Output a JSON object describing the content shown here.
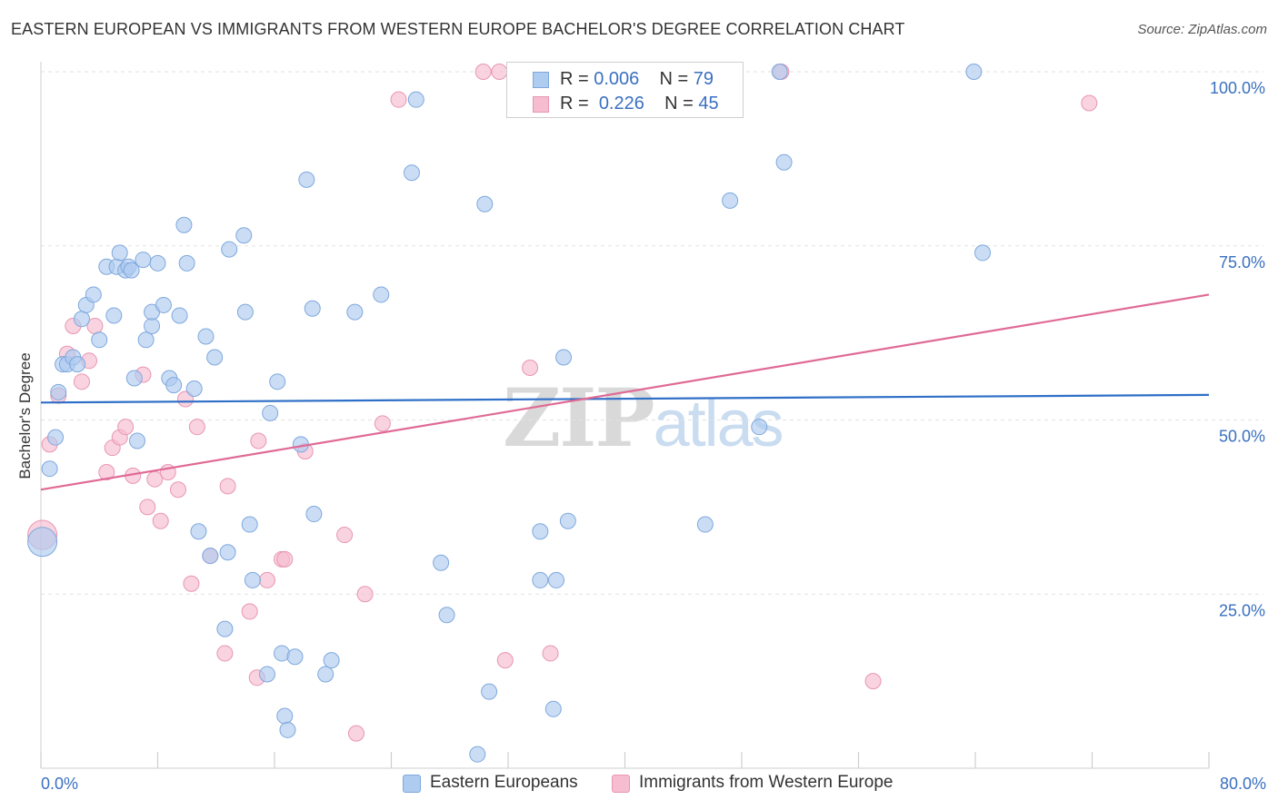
{
  "header": {
    "title": "EASTERN EUROPEAN VS IMMIGRANTS FROM WESTERN EUROPE BACHELOR'S DEGREE CORRELATION CHART",
    "source": "Source: ZipAtlas.com"
  },
  "watermark": {
    "zip": "ZIP",
    "atlas": "atlas"
  },
  "legend": {
    "blue": {
      "r_label": "R = ",
      "r_value": "0.006",
      "n_label": "N = ",
      "n_value": "79"
    },
    "pink": {
      "r_label": "R = ",
      "r_value": "0.226",
      "n_label": "N = ",
      "n_value": "45"
    }
  },
  "bottom_legend": {
    "blue_label": "Eastern Europeans",
    "pink_label": "Immigrants from Western Europe"
  },
  "colors": {
    "blue_fill": "#aecbf0",
    "blue_stroke": "#7fa8dc",
    "blue_line": "#2f6fc7",
    "pink_fill": "#f6bcd0",
    "pink_stroke": "#e896b3",
    "pink_line": "#e06a95",
    "axis_tick_label": "#3a70c0",
    "grid": "#e2e2e2"
  },
  "chart_data": {
    "type": "scatter",
    "title": "EASTERN EUROPEAN VS IMMIGRANTS FROM WESTERN EUROPE BACHELOR'S DEGREE CORRELATION CHART",
    "xlabel": "",
    "ylabel": "Bachelor's Degree",
    "xlim": [
      0,
      80
    ],
    "ylim": [
      0,
      100
    ],
    "x_tick_labels": [
      "0.0%",
      "80.0%"
    ],
    "y_tick_values": [
      25,
      50,
      75,
      100
    ],
    "y_tick_labels": [
      "25.0%",
      "50.0%",
      "75.0%",
      "100.0%"
    ],
    "grid": true,
    "legend_placement": "top-center",
    "series": [
      {
        "name": "Eastern Europeans",
        "color": "#aecbf0",
        "trend": {
          "x": [
            0,
            80
          ],
          "y": [
            52.5,
            53.6
          ]
        },
        "points": [
          {
            "x": 0.1,
            "y": 32.5,
            "big": true
          },
          {
            "x": 0.6,
            "y": 43
          },
          {
            "x": 1.0,
            "y": 47.5
          },
          {
            "x": 1.2,
            "y": 54
          },
          {
            "x": 1.5,
            "y": 58
          },
          {
            "x": 1.8,
            "y": 58
          },
          {
            "x": 2.2,
            "y": 59
          },
          {
            "x": 2.5,
            "y": 58
          },
          {
            "x": 2.8,
            "y": 64.5
          },
          {
            "x": 3.1,
            "y": 66.5
          },
          {
            "x": 3.6,
            "y": 68
          },
          {
            "x": 4.0,
            "y": 61.5
          },
          {
            "x": 4.5,
            "y": 72
          },
          {
            "x": 5.0,
            "y": 65
          },
          {
            "x": 5.2,
            "y": 72
          },
          {
            "x": 5.4,
            "y": 74
          },
          {
            "x": 5.8,
            "y": 71.5
          },
          {
            "x": 6.0,
            "y": 72
          },
          {
            "x": 6.2,
            "y": 71.5
          },
          {
            "x": 6.4,
            "y": 56
          },
          {
            "x": 6.6,
            "y": 47
          },
          {
            "x": 7.0,
            "y": 73
          },
          {
            "x": 7.2,
            "y": 61.5
          },
          {
            "x": 7.6,
            "y": 63.5
          },
          {
            "x": 7.6,
            "y": 65.5
          },
          {
            "x": 8.0,
            "y": 72.5
          },
          {
            "x": 8.4,
            "y": 66.5
          },
          {
            "x": 8.8,
            "y": 56
          },
          {
            "x": 9.1,
            "y": 55
          },
          {
            "x": 9.5,
            "y": 65
          },
          {
            "x": 9.8,
            "y": 78
          },
          {
            "x": 10.0,
            "y": 72.5
          },
          {
            "x": 10.5,
            "y": 54.5
          },
          {
            "x": 10.8,
            "y": 34
          },
          {
            "x": 11.3,
            "y": 62
          },
          {
            "x": 11.6,
            "y": 30.5
          },
          {
            "x": 11.9,
            "y": 59
          },
          {
            "x": 12.6,
            "y": 20
          },
          {
            "x": 12.8,
            "y": 31
          },
          {
            "x": 12.9,
            "y": 74.5
          },
          {
            "x": 13.9,
            "y": 76.5
          },
          {
            "x": 14.0,
            "y": 65.5
          },
          {
            "x": 14.3,
            "y": 35
          },
          {
            "x": 14.5,
            "y": 27
          },
          {
            "x": 15.5,
            "y": 13.5
          },
          {
            "x": 15.7,
            "y": 51
          },
          {
            "x": 16.2,
            "y": 55.5
          },
          {
            "x": 16.5,
            "y": 16.5
          },
          {
            "x": 16.7,
            "y": 7.5
          },
          {
            "x": 16.9,
            "y": 5.5
          },
          {
            "x": 17.4,
            "y": 16
          },
          {
            "x": 17.8,
            "y": 46.5
          },
          {
            "x": 18.2,
            "y": 84.5
          },
          {
            "x": 18.6,
            "y": 66
          },
          {
            "x": 18.7,
            "y": 36.5
          },
          {
            "x": 19.5,
            "y": 13.5
          },
          {
            "x": 19.9,
            "y": 15.5
          },
          {
            "x": 21.5,
            "y": 65.5
          },
          {
            "x": 23.3,
            "y": 68
          },
          {
            "x": 25.4,
            "y": 85.5
          },
          {
            "x": 25.7,
            "y": 96
          },
          {
            "x": 27.4,
            "y": 29.5
          },
          {
            "x": 27.8,
            "y": 22
          },
          {
            "x": 29.9,
            "y": 2
          },
          {
            "x": 30.4,
            "y": 81
          },
          {
            "x": 30.7,
            "y": 11
          },
          {
            "x": 34.2,
            "y": 34
          },
          {
            "x": 34.2,
            "y": 27
          },
          {
            "x": 35.1,
            "y": 8.5
          },
          {
            "x": 35.3,
            "y": 27
          },
          {
            "x": 35.8,
            "y": 59
          },
          {
            "x": 36.1,
            "y": 35.5
          },
          {
            "x": 45.5,
            "y": 35
          },
          {
            "x": 47.2,
            "y": 81.5
          },
          {
            "x": 49.2,
            "y": 49
          },
          {
            "x": 50.6,
            "y": 100
          },
          {
            "x": 50.9,
            "y": 87
          },
          {
            "x": 63.9,
            "y": 100
          },
          {
            "x": 64.5,
            "y": 74
          }
        ]
      },
      {
        "name": "Immigrants from Western Europe",
        "color": "#f6bcd0",
        "trend": {
          "x": [
            0,
            80
          ],
          "y": [
            40,
            68
          ]
        },
        "points": [
          {
            "x": 0.1,
            "y": 33.5,
            "big": true
          },
          {
            "x": 0.6,
            "y": 46.5
          },
          {
            "x": 1.2,
            "y": 53.5
          },
          {
            "x": 1.8,
            "y": 59.5
          },
          {
            "x": 2.2,
            "y": 63.5
          },
          {
            "x": 2.8,
            "y": 55.5
          },
          {
            "x": 3.3,
            "y": 58.5
          },
          {
            "x": 3.7,
            "y": 63.5
          },
          {
            "x": 4.5,
            "y": 42.5
          },
          {
            "x": 4.9,
            "y": 46
          },
          {
            "x": 5.4,
            "y": 47.5
          },
          {
            "x": 5.8,
            "y": 49
          },
          {
            "x": 6.3,
            "y": 42
          },
          {
            "x": 7.0,
            "y": 56.5
          },
          {
            "x": 7.3,
            "y": 37.5
          },
          {
            "x": 7.8,
            "y": 41.5
          },
          {
            "x": 8.2,
            "y": 35.5
          },
          {
            "x": 8.7,
            "y": 42.5
          },
          {
            "x": 9.4,
            "y": 40
          },
          {
            "x": 9.9,
            "y": 53
          },
          {
            "x": 10.3,
            "y": 26.5
          },
          {
            "x": 10.7,
            "y": 49
          },
          {
            "x": 11.6,
            "y": 30.5
          },
          {
            "x": 12.6,
            "y": 16.5
          },
          {
            "x": 12.8,
            "y": 40.5
          },
          {
            "x": 14.3,
            "y": 22.5
          },
          {
            "x": 14.8,
            "y": 13
          },
          {
            "x": 15.5,
            "y": 27
          },
          {
            "x": 14.9,
            "y": 47
          },
          {
            "x": 16.5,
            "y": 30
          },
          {
            "x": 16.7,
            "y": 30
          },
          {
            "x": 18.1,
            "y": 45.5
          },
          {
            "x": 20.8,
            "y": 33.5
          },
          {
            "x": 21.6,
            "y": 5
          },
          {
            "x": 22.2,
            "y": 25
          },
          {
            "x": 23.4,
            "y": 49.5
          },
          {
            "x": 24.5,
            "y": 96
          },
          {
            "x": 30.3,
            "y": 100
          },
          {
            "x": 31.4,
            "y": 100
          },
          {
            "x": 31.8,
            "y": 15.5
          },
          {
            "x": 33.5,
            "y": 57.5
          },
          {
            "x": 34.9,
            "y": 16.5
          },
          {
            "x": 50.7,
            "y": 100
          },
          {
            "x": 57.0,
            "y": 12.5
          },
          {
            "x": 71.8,
            "y": 95.5
          }
        ]
      }
    ]
  }
}
